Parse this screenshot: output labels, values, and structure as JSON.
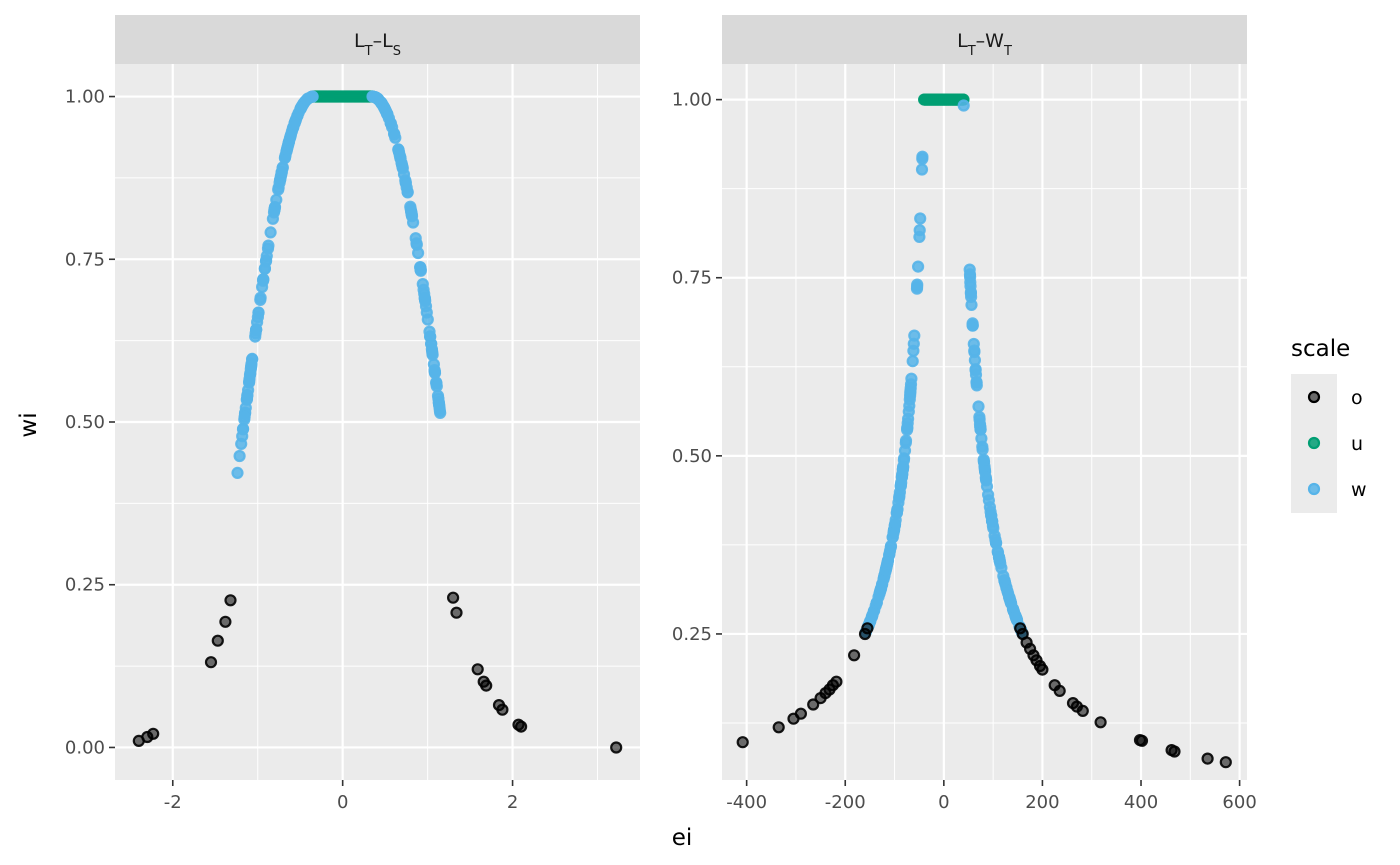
{
  "chart_data": {
    "type": "scatter",
    "xlabel": "ei",
    "ylabel": "wi",
    "legend": {
      "title": "scale",
      "position": "right",
      "entries": [
        {
          "key": "o",
          "color": "#000000"
        },
        {
          "key": "u",
          "color": "#009E73"
        },
        {
          "key": "w",
          "color": "#56B4E9"
        }
      ]
    },
    "colors": {
      "panel_bg": "#EBEBEB",
      "strip_bg": "#D9D9D9",
      "grid": "#FFFFFF",
      "tick_text": "#4D4D4D"
    },
    "panels": [
      {
        "strip": "LT–LS",
        "strip_parts": [
          {
            "text": "L",
            "sub": "T"
          },
          {
            "text": "–",
            "sub": ""
          },
          {
            "text": "L",
            "sub": "S"
          }
        ],
        "xlim": [
          -2.68,
          3.5
        ],
        "ylim": [
          -0.05,
          1.05
        ],
        "xticks": [
          -2,
          0,
          2
        ],
        "xtick_labels": [
          "-2",
          "0",
          "2"
        ],
        "yticks": [
          0,
          0.25,
          0.5,
          0.75,
          1.0
        ],
        "ytick_labels": [
          "0.00",
          "0.25",
          "0.50",
          "0.75",
          "1.00"
        ],
        "weight_fn": "tukey_bisquare",
        "params": {
          "c": 1.5,
          "flat": 0.35
        },
        "series": [
          {
            "name": "u",
            "color": "#009E73",
            "x_range": [
              -0.35,
              0.35
            ],
            "n": 60
          },
          {
            "name": "w",
            "color": "#56B4E9",
            "x_ranges": [
              [
                -1.25,
                -0.35
              ],
              [
                0.35,
                1.15
              ]
            ],
            "n": 220
          },
          {
            "name": "o",
            "color": "#000000",
            "x": [
              -2.4,
              -2.3,
              -2.23,
              -1.55,
              -1.47,
              -1.38,
              -1.32,
              1.3,
              1.34,
              1.59,
              1.66,
              1.69,
              1.84,
              1.88,
              2.07,
              2.1,
              3.22
            ],
            "y": [
              0.01,
              0.016,
              0.021,
              0.131,
              0.164,
              0.193,
              0.226,
              0.23,
              0.207,
              0.12,
              0.101,
              0.095,
              0.065,
              0.058,
              0.035,
              0.032,
              0.0
            ]
          }
        ]
      },
      {
        "strip": "LT–WT",
        "strip_parts": [
          {
            "text": "L",
            "sub": "T"
          },
          {
            "text": "–W",
            "sub": "T"
          }
        ],
        "xlim": [
          -450,
          615
        ],
        "ylim": [
          0.045,
          1.05
        ],
        "xticks": [
          -400,
          -200,
          0,
          200,
          400,
          600
        ],
        "xtick_labels": [
          "-400",
          "-200",
          "0",
          "200",
          "400",
          "600"
        ],
        "yticks": [
          0.25,
          0.5,
          0.75,
          1.0
        ],
        "ytick_labels": [
          "0.25",
          "0.50",
          "0.75",
          "1.00"
        ],
        "weight_fn": "huber",
        "params": {
          "c": 40
        },
        "series": [
          {
            "name": "u",
            "color": "#009E73",
            "x_range": [
              -40,
              40
            ],
            "n": 60
          },
          {
            "name": "w",
            "color": "#56B4E9",
            "x_ranges": [
              [
                -160,
                -40
              ],
              [
                40,
                160
              ]
            ],
            "n": 220
          },
          {
            "name": "o",
            "color": "#000000",
            "x": [
              -408,
              -335,
              -305,
              -290,
              -265,
              -250,
              -240,
              -232,
              -225,
              -218,
              -182,
              -160,
              -155,
              155,
              160,
              168,
              175,
              182,
              188,
              195,
              200,
              225,
              235,
              262,
              270,
              282,
              318,
              398,
              402,
              462,
              468,
              535,
              572
            ],
            "y": [
              0.098,
              0.119,
              0.131,
              0.138,
              0.151,
              0.16,
              0.167,
              0.172,
              0.178,
              0.183,
              0.22,
              0.25,
              0.258,
              0.258,
              0.25,
              0.238,
              0.229,
              0.22,
              0.213,
              0.205,
              0.2,
              0.178,
              0.17,
              0.153,
              0.148,
              0.142,
              0.126,
              0.101,
              0.1,
              0.087,
              0.085,
              0.075,
              0.07
            ]
          }
        ]
      }
    ]
  }
}
